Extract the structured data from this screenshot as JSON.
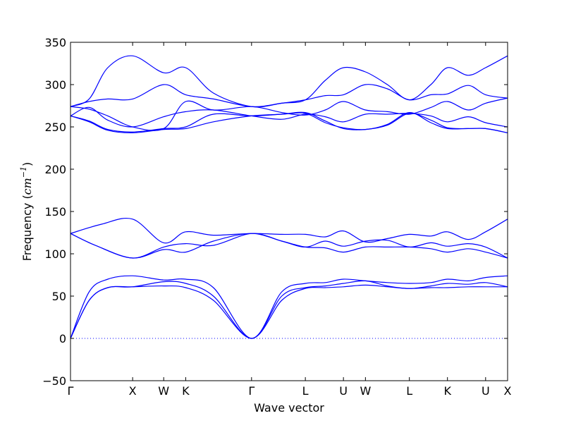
{
  "chart_data": {
    "type": "line",
    "title": "",
    "xlabel": "Wave vector",
    "ylabel": {
      "prefix": "Frequency (",
      "unit": "cm",
      "exponent": "−1",
      "suffix": ")"
    },
    "ylim": [
      -50,
      350
    ],
    "yticks": [
      -50,
      0,
      50,
      100,
      150,
      200,
      250,
      300,
      350
    ],
    "ytick_labels": [
      "−50",
      "0",
      "50",
      "100",
      "150",
      "200",
      "250",
      "300",
      "350"
    ],
    "x_points": [
      {
        "label": "Γ",
        "x": 0.0
      },
      {
        "label": "X",
        "x": 1.0
      },
      {
        "label": "W",
        "x": 1.5
      },
      {
        "label": "K",
        "x": 1.854
      },
      {
        "label": "Γ",
        "x": 2.914
      },
      {
        "label": "L",
        "x": 3.78
      },
      {
        "label": "U",
        "x": 4.393
      },
      {
        "label": "W",
        "x": 4.747
      },
      {
        "label": "L",
        "x": 5.454
      },
      {
        "label": "K",
        "x": 6.067
      },
      {
        "label": "U",
        "x": 6.681
      },
      {
        "label": "X",
        "x": 7.035
      }
    ],
    "zero_line": {
      "y": 0,
      "style": "dotted"
    },
    "line_color": "#0000ff",
    "series": [
      {
        "x": [
          0,
          0.3,
          0.6,
          1.0,
          1.5,
          1.854,
          2.3,
          2.914,
          3.4,
          3.78,
          4.1,
          4.393,
          4.747,
          5.1,
          5.454,
          5.8,
          6.067,
          6.4,
          6.681,
          7.035
        ],
        "y": [
          0,
          45,
          60,
          61,
          62,
          60,
          45,
          0,
          45,
          59,
          60,
          61,
          63,
          61,
          59,
          60,
          60,
          61,
          61,
          61
        ]
      },
      {
        "x": [
          0,
          0.3,
          0.6,
          1.0,
          1.5,
          1.854,
          2.3,
          2.914,
          3.4,
          3.78,
          4.1,
          4.393,
          4.747,
          5.1,
          5.454,
          5.8,
          6.067,
          6.4,
          6.681,
          7.035
        ],
        "y": [
          0,
          45,
          60,
          61,
          67,
          65,
          50,
          0,
          50,
          60,
          62,
          65,
          68,
          62,
          59,
          62,
          65,
          64,
          66,
          61
        ]
      },
      {
        "x": [
          0,
          0.3,
          0.6,
          1.0,
          1.5,
          1.854,
          2.3,
          2.914,
          3.4,
          3.78,
          4.1,
          4.393,
          4.747,
          5.1,
          5.454,
          5.8,
          6.067,
          6.4,
          6.681,
          7.035
        ],
        "y": [
          0,
          55,
          70,
          74,
          69,
          70,
          60,
          0,
          55,
          65,
          66,
          70,
          68,
          66,
          65,
          66,
          70,
          68,
          72,
          74
        ]
      },
      {
        "x": [
          0,
          0.4,
          1.0,
          1.5,
          1.854,
          2.3,
          2.914,
          3.4,
          3.78,
          4.1,
          4.393,
          4.747,
          5.1,
          5.454,
          5.8,
          6.067,
          6.4,
          6.681,
          7.035
        ],
        "y": [
          124,
          110,
          95,
          105,
          102,
          115,
          124,
          115,
          108,
          107,
          102,
          108,
          108,
          108,
          106,
          102,
          106,
          102,
          95
        ]
      },
      {
        "x": [
          0,
          0.4,
          1.0,
          1.5,
          1.854,
          2.3,
          2.914,
          3.4,
          3.78,
          4.1,
          4.393,
          4.747,
          5.1,
          5.454,
          5.8,
          6.067,
          6.4,
          6.681,
          7.035
        ],
        "y": [
          124,
          110,
          95,
          108,
          112,
          110,
          124,
          115,
          108,
          115,
          109,
          115,
          116,
          108,
          113,
          109,
          112,
          108,
          95
        ]
      },
      {
        "x": [
          0,
          0.5,
          1.0,
          1.5,
          1.854,
          2.3,
          2.914,
          3.4,
          3.78,
          4.1,
          4.393,
          4.747,
          5.1,
          5.454,
          5.8,
          6.067,
          6.4,
          6.681,
          7.035
        ],
        "y": [
          124,
          135,
          141,
          113,
          126,
          122,
          124,
          123,
          123,
          120,
          127,
          114,
          118,
          123,
          121,
          126,
          117,
          126,
          141
        ]
      },
      {
        "x": [
          0,
          0.3,
          0.6,
          1.0,
          1.5,
          1.854,
          2.3,
          2.914,
          3.4,
          3.78,
          4.1,
          4.393,
          4.747,
          5.1,
          5.454,
          5.8,
          6.067,
          6.4,
          6.681,
          7.035
        ],
        "y": [
          263,
          256,
          246,
          243,
          247,
          248,
          256,
          263,
          265,
          267,
          257,
          248,
          247,
          252,
          266,
          258,
          249,
          248,
          248,
          243
        ]
      },
      {
        "x": [
          0,
          0.3,
          0.6,
          1.0,
          1.5,
          1.854,
          2.3,
          2.914,
          3.4,
          3.78,
          4.1,
          4.393,
          4.747,
          5.1,
          5.454,
          5.8,
          6.067,
          6.4,
          6.681,
          7.035
        ],
        "y": [
          263,
          257,
          247,
          244,
          248,
          250,
          265,
          263,
          265,
          266,
          255,
          249,
          247,
          253,
          267,
          255,
          248,
          248,
          248,
          243
        ]
      },
      {
        "x": [
          0,
          0.3,
          0.6,
          1.0,
          1.5,
          1.854,
          2.3,
          2.914,
          3.4,
          3.78,
          4.1,
          4.393,
          4.747,
          5.1,
          5.454,
          5.8,
          6.067,
          6.4,
          6.681,
          7.035
        ],
        "y": [
          263,
          273,
          258,
          250,
          262,
          268,
          270,
          263,
          259,
          265,
          262,
          256,
          265,
          265,
          266,
          263,
          256,
          262,
          255,
          250
        ]
      },
      {
        "x": [
          0,
          0.3,
          0.6,
          1.0,
          1.5,
          1.854,
          2.3,
          2.914,
          3.4,
          3.78,
          4.1,
          4.393,
          4.747,
          5.1,
          5.454,
          5.8,
          6.067,
          6.4,
          6.681,
          7.035
        ],
        "y": [
          274,
          271,
          263,
          250,
          248,
          280,
          270,
          274,
          267,
          264,
          270,
          280,
          270,
          268,
          265,
          273,
          280,
          270,
          278,
          284
        ]
      },
      {
        "x": [
          0,
          0.3,
          0.6,
          1.0,
          1.5,
          1.854,
          2.3,
          2.914,
          3.4,
          3.78,
          4.1,
          4.393,
          4.747,
          5.1,
          5.454,
          5.8,
          6.067,
          6.4,
          6.681,
          7.035
        ],
        "y": [
          274,
          280,
          283,
          283,
          300,
          288,
          283,
          274,
          278,
          282,
          287,
          288,
          300,
          295,
          282,
          288,
          289,
          299,
          288,
          284
        ]
      },
      {
        "x": [
          0,
          0.3,
          0.6,
          1.0,
          1.5,
          1.854,
          2.3,
          2.914,
          3.4,
          3.78,
          4.1,
          4.393,
          4.747,
          5.1,
          5.454,
          5.8,
          6.067,
          6.4,
          6.681,
          7.035
        ],
        "y": [
          274,
          283,
          320,
          334,
          314,
          320,
          290,
          274,
          278,
          282,
          305,
          320,
          315,
          300,
          282,
          300,
          320,
          311,
          320,
          334
        ]
      }
    ]
  }
}
